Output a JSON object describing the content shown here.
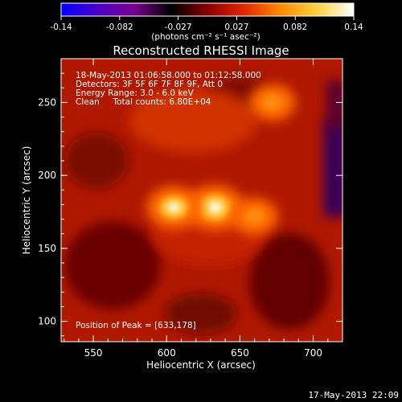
{
  "chart_data": {
    "type": "heatmap",
    "title": "Reconstructed RHESSI Image",
    "xlabel": "Heliocentric X (arcsec)",
    "ylabel": "Heliocentric Y (arcsec)",
    "xlim": [
      528,
      720
    ],
    "ylim": [
      86,
      280
    ],
    "x_ticks": [
      550,
      600,
      650,
      700
    ],
    "y_ticks": [
      100,
      150,
      200,
      250
    ],
    "colorbar": {
      "range": [
        -0.14,
        0.14
      ],
      "ticks": [
        "-0.14",
        "-0.082",
        "-0.027",
        "0.027",
        "0.082",
        "0.14"
      ],
      "label": "(photons cm⁻² s⁻¹ asec⁻²)",
      "colormap": [
        "#0000ff",
        "#4a00c8",
        "#7a0090",
        "#000000",
        "#8a0000",
        "#e02800",
        "#ff8a00",
        "#ffd040",
        "#ffffff"
      ]
    },
    "annotation_lines": [
      "18-May-2013 01:06:58.000 to 01:12:58.000",
      "Detectors: 3F 5F 6F 7F 8F 9F, Att 0",
      "Energy Range: 3.0 - 6.0 keV",
      "Clean     Total counts: 6.80E+04"
    ],
    "peak_text": "Position of Peak = [633,178]",
    "sources": [
      {
        "x": 633,
        "y": 178,
        "intensity": 0.14
      },
      {
        "x": 605,
        "y": 178,
        "intensity": 0.12
      },
      {
        "x": 660,
        "y": 172,
        "intensity": 0.07
      },
      {
        "x": 672,
        "y": 250,
        "intensity": 0.07
      }
    ]
  },
  "footer_date": "17-May-2013 22:09"
}
